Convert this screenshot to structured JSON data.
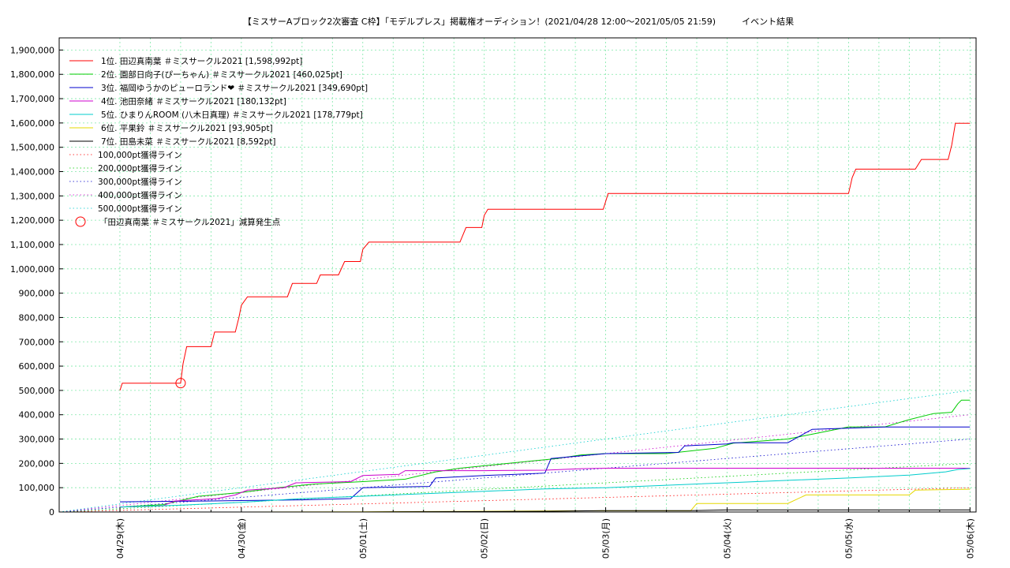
{
  "chart_data": {
    "type": "line",
    "title": "【ミスサーAブロック2次審査 C枠】「モデルプレス」掲載権オーディション！(2021/04/28 12:00〜2021/05/05 21:59)　　　イベント結果",
    "xlabel": "",
    "ylabel": "",
    "x_range": [
      -0.5,
      7.05
    ],
    "ylim": [
      0,
      1950000
    ],
    "yticks": [
      0,
      100000,
      200000,
      300000,
      400000,
      500000,
      600000,
      700000,
      800000,
      900000,
      1000000,
      1100000,
      1200000,
      1300000,
      1400000,
      1500000,
      1600000,
      1700000,
      1800000,
      1900000
    ],
    "ytick_labels": [
      "0",
      "100,000",
      "200,000",
      "300,000",
      "400,000",
      "500,000",
      "600,000",
      "700,000",
      "800,000",
      "900,000",
      "1,000,000",
      "1,100,000",
      "1,200,000",
      "1,300,000",
      "1,400,000",
      "1,500,000",
      "1,600,000",
      "1,700,000",
      "1,800,000",
      "1,900,000"
    ],
    "xticks": [
      0,
      1,
      2,
      3,
      4,
      5,
      6,
      7
    ],
    "xtick_labels": [
      "04/29(木)",
      "04/30(金)",
      "05/01(土)",
      "05/02(日)",
      "05/03(月)",
      "05/04(火)",
      "05/05(水)",
      "05/06(木)"
    ],
    "grid": true,
    "legend_position": "top-left",
    "series": [
      {
        "name": "1位. 田辺真南葉 ＃ミスサークル2021 [1,598,992pt]",
        "color": "#ff0000",
        "points": [
          [
            0,
            500000
          ],
          [
            0.02,
            530000
          ],
          [
            0.5,
            530000
          ],
          [
            0.52,
            610000
          ],
          [
            0.55,
            680000
          ],
          [
            0.75,
            680000
          ],
          [
            0.78,
            740000
          ],
          [
            0.95,
            740000
          ],
          [
            0.98,
            800000
          ],
          [
            1.0,
            850000
          ],
          [
            1.05,
            885000
          ],
          [
            1.38,
            885000
          ],
          [
            1.42,
            940000
          ],
          [
            1.62,
            940000
          ],
          [
            1.65,
            975000
          ],
          [
            1.8,
            975000
          ],
          [
            1.85,
            1030000
          ],
          [
            1.98,
            1030000
          ],
          [
            2.0,
            1080000
          ],
          [
            2.05,
            1110000
          ],
          [
            2.8,
            1110000
          ],
          [
            2.85,
            1170000
          ],
          [
            2.98,
            1170000
          ],
          [
            3.0,
            1220000
          ],
          [
            3.03,
            1245000
          ],
          [
            3.98,
            1245000
          ],
          [
            4.02,
            1310000
          ],
          [
            6.0,
            1310000
          ],
          [
            6.03,
            1375000
          ],
          [
            6.06,
            1410000
          ],
          [
            6.55,
            1410000
          ],
          [
            6.6,
            1450000
          ],
          [
            6.82,
            1450000
          ],
          [
            6.85,
            1510000
          ],
          [
            6.88,
            1598992
          ],
          [
            7.0,
            1598992
          ]
        ]
      },
      {
        "name": "2位. 園部日向子(ぴーちゃん) ＃ミスサークル2021 [460,025pt]",
        "color": "#00cc00",
        "points": [
          [
            0,
            20000
          ],
          [
            0.35,
            30000
          ],
          [
            0.65,
            65000
          ],
          [
            1.0,
            80000
          ],
          [
            1.15,
            90000
          ],
          [
            1.3,
            100000
          ],
          [
            1.6,
            115000
          ],
          [
            2.0,
            125000
          ],
          [
            2.35,
            135000
          ],
          [
            2.6,
            165000
          ],
          [
            2.8,
            180000
          ],
          [
            3.0,
            190000
          ],
          [
            3.4,
            210000
          ],
          [
            3.6,
            220000
          ],
          [
            3.8,
            235000
          ],
          [
            4.0,
            240000
          ],
          [
            4.5,
            240000
          ],
          [
            4.9,
            262000
          ],
          [
            5.05,
            283000
          ],
          [
            5.5,
            300000
          ],
          [
            5.7,
            320000
          ],
          [
            5.9,
            340000
          ],
          [
            6.0,
            350000
          ],
          [
            6.3,
            350000
          ],
          [
            6.5,
            380000
          ],
          [
            6.7,
            405000
          ],
          [
            6.85,
            410000
          ],
          [
            6.9,
            445000
          ],
          [
            6.93,
            460025
          ],
          [
            7.0,
            460025
          ]
        ]
      },
      {
        "name": "3位. 福岡ゆうかのピューロランド❤ ＃ミスサークル2021 [349,690pt]",
        "color": "#0000cc",
        "points": [
          [
            0,
            42000
          ],
          [
            0.7,
            45000
          ],
          [
            1.0,
            47000
          ],
          [
            1.5,
            50000
          ],
          [
            1.9,
            55000
          ],
          [
            2.0,
            100000
          ],
          [
            2.55,
            105000
          ],
          [
            2.6,
            140000
          ],
          [
            3.0,
            150000
          ],
          [
            3.5,
            160000
          ],
          [
            3.55,
            220000
          ],
          [
            4.0,
            240000
          ],
          [
            4.6,
            245000
          ],
          [
            4.65,
            272000
          ],
          [
            5.0,
            280000
          ],
          [
            5.05,
            285000
          ],
          [
            5.5,
            285000
          ],
          [
            5.7,
            340000
          ],
          [
            6.0,
            345000
          ],
          [
            6.3,
            349690
          ],
          [
            7.0,
            349690
          ]
        ]
      },
      {
        "name": "4位. 池田奈緒 ＃ミスサークル2021 [180,132pt]",
        "color": "#cc00cc",
        "points": [
          [
            0,
            20000
          ],
          [
            0.35,
            25000
          ],
          [
            0.45,
            45000
          ],
          [
            0.8,
            55000
          ],
          [
            0.95,
            70000
          ],
          [
            1.05,
            90000
          ],
          [
            1.35,
            100000
          ],
          [
            1.45,
            120000
          ],
          [
            1.9,
            125000
          ],
          [
            2.0,
            150000
          ],
          [
            2.3,
            155000
          ],
          [
            2.35,
            170000
          ],
          [
            3.0,
            170000
          ],
          [
            3.5,
            172000
          ],
          [
            3.8,
            178000
          ],
          [
            4.0,
            180000
          ],
          [
            7.0,
            180132
          ]
        ]
      },
      {
        "name": "5位. ひまりんROOM (八木日真理) ＃ミスサークル2021 [178,779pt]",
        "color": "#00cccc",
        "points": [
          [
            0,
            20000
          ],
          [
            0.5,
            28000
          ],
          [
            1.0,
            40000
          ],
          [
            1.5,
            55000
          ],
          [
            2.0,
            65000
          ],
          [
            2.5,
            75000
          ],
          [
            3.0,
            85000
          ],
          [
            3.5,
            95000
          ],
          [
            4.0,
            100000
          ],
          [
            4.5,
            110000
          ],
          [
            5.0,
            120000
          ],
          [
            5.5,
            130000
          ],
          [
            6.0,
            140000
          ],
          [
            6.5,
            152000
          ],
          [
            6.8,
            165000
          ],
          [
            6.9,
            175000
          ],
          [
            7.0,
            178779
          ]
        ]
      },
      {
        "name": "6位. 平果鈴 ＃ミスサークル2021 [93,905pt]",
        "color": "#e6d800",
        "points": [
          [
            0,
            0
          ],
          [
            1.0,
            0
          ],
          [
            2.0,
            1000
          ],
          [
            3.0,
            3000
          ],
          [
            3.7,
            5000
          ],
          [
            4.0,
            5000
          ],
          [
            4.7,
            5000
          ],
          [
            4.75,
            35000
          ],
          [
            5.5,
            35000
          ],
          [
            5.65,
            70000
          ],
          [
            6.5,
            70000
          ],
          [
            6.55,
            90000
          ],
          [
            7.0,
            93905
          ]
        ]
      },
      {
        "name": "7位. 田島未菜 ＃ミスサークル2021 [8,592pt]",
        "color": "#000000",
        "points": [
          [
            0,
            0
          ],
          [
            2.0,
            0
          ],
          [
            3.5,
            3000
          ],
          [
            4.0,
            6000
          ],
          [
            4.7,
            6000
          ],
          [
            5.0,
            8592
          ],
          [
            7.0,
            8592
          ]
        ]
      }
    ],
    "reference_lines": [
      {
        "name": "100,000pt獲得ライン",
        "color": "#ff0000",
        "points": [
          [
            -0.5,
            0
          ],
          [
            7.0,
            100000
          ]
        ]
      },
      {
        "name": "200,000pt獲得ライン",
        "color": "#00cc00",
        "points": [
          [
            -0.5,
            0
          ],
          [
            7.0,
            200000
          ]
        ]
      },
      {
        "name": "300,000pt獲得ライン",
        "color": "#0000cc",
        "points": [
          [
            -0.5,
            0
          ],
          [
            7.0,
            300000
          ]
        ]
      },
      {
        "name": "400,000pt獲得ライン",
        "color": "#cc00cc",
        "points": [
          [
            -0.5,
            0
          ],
          [
            7.0,
            400000
          ]
        ]
      },
      {
        "name": "500,000pt獲得ライン",
        "color": "#00cccc",
        "points": [
          [
            -0.5,
            0
          ],
          [
            7.0,
            500000
          ]
        ]
      }
    ],
    "annotation": {
      "name": "「田辺真南葉 ＃ミスサークル2021」減算発生点",
      "color": "#ff0000",
      "x": 0.5,
      "y": 530000
    }
  }
}
